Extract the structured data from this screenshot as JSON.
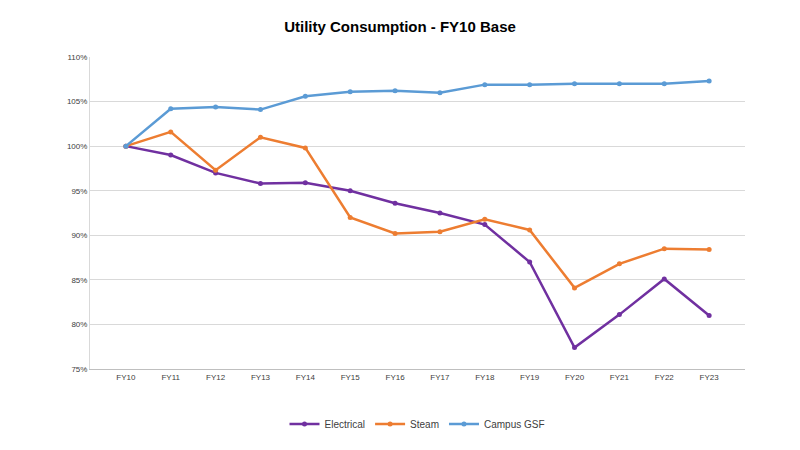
{
  "chart_data": {
    "type": "line",
    "title": "Utility Consumption - FY10 Base",
    "categories": [
      "FY10",
      "FY11",
      "FY12",
      "FY13",
      "FY14",
      "FY15",
      "FY16",
      "FY17",
      "FY18",
      "FY19",
      "FY20",
      "FY21",
      "FY22",
      "FY23"
    ],
    "series": [
      {
        "name": "Electrical",
        "color": "#7030a0",
        "marker": "circle",
        "values": [
          100,
          99,
          97,
          95.8,
          95.9,
          95,
          93.6,
          92.5,
          91.2,
          87,
          77.4,
          81.1,
          85.1,
          81
        ]
      },
      {
        "name": "Steam",
        "color": "#ed7d31",
        "marker": "circle",
        "values": [
          100,
          101.6,
          97.3,
          101,
          99.8,
          92,
          90.2,
          90.4,
          91.8,
          90.6,
          84.1,
          86.8,
          88.5,
          88.4
        ]
      },
      {
        "name": "Campus GSF",
        "color": "#5b9bd5",
        "marker": "circle",
        "values": [
          100,
          104.2,
          104.4,
          104.1,
          105.6,
          106.1,
          106.2,
          106,
          106.9,
          106.9,
          107,
          107,
          107,
          107.3
        ]
      }
    ],
    "ylim": [
      75,
      110
    ],
    "yticks": [
      {
        "value": 75,
        "label": "75%"
      },
      {
        "value": 80,
        "label": "80%"
      },
      {
        "value": 85,
        "label": "85%"
      },
      {
        "value": 90,
        "label": "90%"
      },
      {
        "value": 95,
        "label": "95%"
      },
      {
        "value": 100,
        "label": "100%"
      },
      {
        "value": 105,
        "label": "105%"
      },
      {
        "value": 110,
        "label": "110%"
      }
    ],
    "grid": true,
    "legend": "bottom"
  }
}
